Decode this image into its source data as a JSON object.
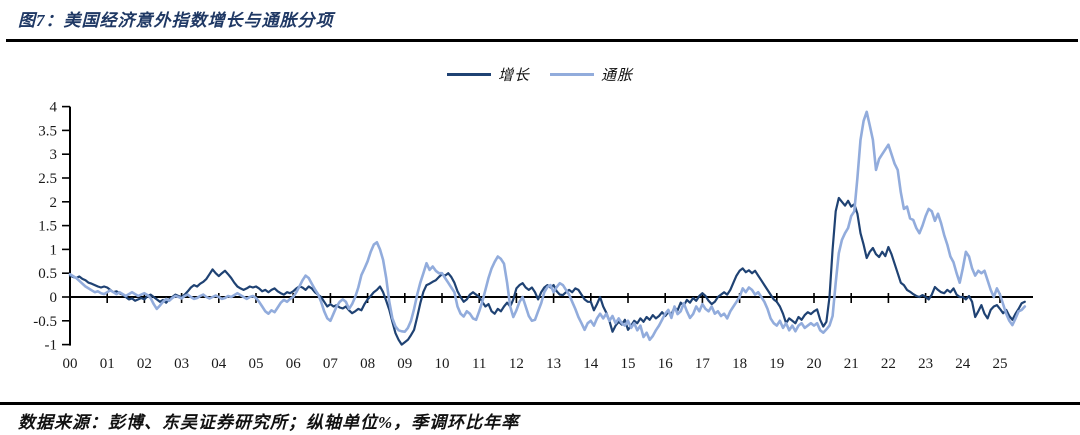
{
  "title": "图7：美国经济意外指数增长与通胀分项",
  "footer": {
    "source": "数据来源：彭博、东吴证券研究所；纵轴单位%，季调环比年率"
  },
  "colors": {
    "title": "#1F3864",
    "axis": "#000000",
    "growth": "#1F4273",
    "inflation": "#92ACDC"
  },
  "chart_data": {
    "type": "line",
    "title": "图7：美国经济意外指数增长与通胀分项",
    "ylabel": "",
    "xlabel": "",
    "y_unit": "%",
    "note": "季调环比年率",
    "ylim": [
      -1,
      4
    ],
    "y_ticks": [
      4,
      3.5,
      3,
      2.5,
      2,
      1.5,
      1,
      0.5,
      0,
      -0.5,
      -1
    ],
    "y_tick_labels": [
      "4",
      "3.5",
      "3",
      "2.5",
      "2",
      "1.5",
      "1",
      "0.5",
      "0",
      "-0.5",
      "-1"
    ],
    "x_tick_labels": [
      "00",
      "01",
      "02",
      "03",
      "04",
      "05",
      "06",
      "07",
      "08",
      "09",
      "10",
      "11",
      "12",
      "13",
      "14",
      "15",
      "16",
      "17",
      "18",
      "19",
      "20",
      "21",
      "22",
      "23",
      "24",
      "25"
    ],
    "x_start_year": 2000,
    "frequency": "monthly",
    "grid": false,
    "legend_position": "top",
    "series": [
      {
        "name": "增长",
        "color": "#1F4273",
        "values": [
          0.45,
          0.42,
          0.4,
          0.43,
          0.38,
          0.35,
          0.3,
          0.28,
          0.25,
          0.22,
          0.2,
          0.22,
          0.2,
          0.15,
          0.1,
          0.12,
          0.08,
          0.05,
          0.0,
          -0.05,
          -0.03,
          -0.08,
          -0.05,
          -0.02,
          -0.05,
          0.02,
          0.05,
          0.0,
          -0.05,
          -0.1,
          -0.06,
          -0.12,
          -0.05,
          0.0,
          0.05,
          0.02,
          0.0,
          0.05,
          0.12,
          0.2,
          0.25,
          0.22,
          0.28,
          0.32,
          0.38,
          0.48,
          0.58,
          0.5,
          0.44,
          0.5,
          0.55,
          0.48,
          0.4,
          0.3,
          0.22,
          0.18,
          0.15,
          0.18,
          0.22,
          0.2,
          0.22,
          0.18,
          0.12,
          0.15,
          0.1,
          0.15,
          0.18,
          0.12,
          0.08,
          0.05,
          0.1,
          0.08,
          0.12,
          0.18,
          0.22,
          0.2,
          0.15,
          0.22,
          0.18,
          0.1,
          0.05,
          0.0,
          -0.1,
          -0.2,
          -0.15,
          -0.2,
          -0.17,
          -0.22,
          -0.24,
          -0.2,
          -0.28,
          -0.34,
          -0.3,
          -0.25,
          -0.28,
          -0.15,
          -0.05,
          0.02,
          0.1,
          0.15,
          0.22,
          0.1,
          -0.08,
          -0.27,
          -0.52,
          -0.76,
          -0.9,
          -1.0,
          -0.95,
          -0.9,
          -0.8,
          -0.69,
          -0.42,
          -0.13,
          0.11,
          0.25,
          0.28,
          0.32,
          0.35,
          0.42,
          0.48,
          0.45,
          0.5,
          0.42,
          0.3,
          0.12,
          0.0,
          -0.1,
          -0.05,
          0.05,
          0.1,
          0.05,
          0.0,
          -0.1,
          -0.2,
          -0.15,
          -0.3,
          -0.35,
          -0.25,
          -0.3,
          -0.2,
          -0.12,
          -0.2,
          -0.05,
          0.18,
          0.25,
          0.29,
          0.2,
          0.15,
          0.2,
          0.1,
          -0.05,
          0.1,
          0.2,
          0.25,
          0.2,
          0.25,
          0.12,
          0.05,
          0.04,
          0.1,
          0.15,
          0.1,
          0.18,
          0.15,
          0.05,
          -0.05,
          -0.1,
          -0.1,
          -0.28,
          -0.15,
          0.0,
          -0.2,
          -0.33,
          -0.5,
          -0.73,
          -0.6,
          -0.52,
          -0.58,
          -0.48,
          -0.69,
          -0.6,
          -0.5,
          -0.55,
          -0.45,
          -0.52,
          -0.42,
          -0.48,
          -0.38,
          -0.45,
          -0.4,
          -0.32,
          -0.4,
          -0.32,
          -0.36,
          -0.22,
          -0.28,
          -0.12,
          -0.18,
          -0.06,
          -0.12,
          -0.02,
          -0.08,
          0.02,
          0.08,
          0.02,
          -0.08,
          -0.15,
          -0.1,
          0.0,
          0.05,
          0.1,
          0.05,
          0.15,
          0.3,
          0.45,
          0.55,
          0.6,
          0.52,
          0.56,
          0.5,
          0.55,
          0.45,
          0.35,
          0.25,
          0.15,
          0.05,
          -0.05,
          -0.1,
          -0.2,
          -0.35,
          -0.55,
          -0.45,
          -0.5,
          -0.55,
          -0.42,
          -0.48,
          -0.38,
          -0.32,
          -0.36,
          -0.3,
          -0.26,
          -0.48,
          -0.62,
          -0.52,
          0.0,
          1.0,
          1.8,
          2.08,
          2.0,
          1.92,
          2.02,
          1.9,
          1.95,
          1.75,
          1.34,
          1.1,
          0.82,
          0.95,
          1.03,
          0.9,
          0.84,
          0.95,
          0.86,
          1.05,
          0.9,
          0.7,
          0.5,
          0.3,
          0.25,
          0.15,
          0.11,
          0.06,
          0.02,
          0.0,
          0.04,
          0.0,
          -0.05,
          0.05,
          0.21,
          0.15,
          0.1,
          0.08,
          0.15,
          0.1,
          0.18,
          0.05,
          0.0,
          0.0,
          -0.05,
          0.02,
          -0.1,
          -0.42,
          -0.3,
          -0.17,
          -0.35,
          -0.45,
          -0.27,
          -0.2,
          -0.17,
          -0.25,
          -0.34,
          -0.27,
          -0.4,
          -0.48,
          -0.35,
          -0.25,
          -0.13,
          -0.1
        ]
      },
      {
        "name": "通胀",
        "color": "#92ACDC",
        "values": [
          0.48,
          0.44,
          0.4,
          0.34,
          0.28,
          0.22,
          0.18,
          0.14,
          0.1,
          0.12,
          0.08,
          0.06,
          0.1,
          0.14,
          0.1,
          0.06,
          0.1,
          0.06,
          0.02,
          0.06,
          0.1,
          0.06,
          0.02,
          0.05,
          0.08,
          0.04,
          -0.02,
          -0.15,
          -0.25,
          -0.18,
          -0.1,
          -0.04,
          -0.08,
          -0.02,
          0.02,
          0.0,
          -0.03,
          0.02,
          0.05,
          0.0,
          -0.04,
          -0.02,
          0.02,
          0.05,
          0.0,
          -0.03,
          0.0,
          0.03,
          0.0,
          -0.04,
          -0.02,
          0.02,
          0.0,
          0.04,
          0.08,
          0.04,
          0.0,
          -0.04,
          0.0,
          0.02,
          -0.02,
          -0.1,
          -0.2,
          -0.3,
          -0.35,
          -0.28,
          -0.32,
          -0.22,
          -0.12,
          -0.06,
          -0.1,
          -0.04,
          0.0,
          0.1,
          0.22,
          0.35,
          0.45,
          0.4,
          0.28,
          0.16,
          0.06,
          -0.1,
          -0.3,
          -0.45,
          -0.5,
          -0.35,
          -0.2,
          -0.1,
          -0.05,
          -0.1,
          -0.25,
          -0.15,
          0.0,
          0.2,
          0.46,
          0.6,
          0.75,
          0.95,
          1.1,
          1.15,
          1.0,
          0.78,
          0.4,
          -0.1,
          -0.45,
          -0.62,
          -0.7,
          -0.72,
          -0.73,
          -0.65,
          -0.5,
          -0.25,
          0.05,
          0.3,
          0.5,
          0.71,
          0.57,
          0.64,
          0.55,
          0.5,
          0.5,
          0.4,
          0.3,
          0.2,
          0.1,
          -0.2,
          -0.35,
          -0.41,
          -0.3,
          -0.35,
          -0.45,
          -0.48,
          -0.3,
          -0.1,
          0.15,
          0.4,
          0.6,
          0.74,
          0.85,
          0.8,
          0.7,
          0.3,
          -0.2,
          -0.42,
          -0.28,
          -0.1,
          0.0,
          -0.2,
          -0.4,
          -0.5,
          -0.48,
          -0.3,
          -0.13,
          0.1,
          0.21,
          0.25,
          0.1,
          0.21,
          0.29,
          0.25,
          0.15,
          0.05,
          -0.1,
          -0.25,
          -0.42,
          -0.55,
          -0.69,
          -0.55,
          -0.5,
          -0.6,
          -0.45,
          -0.35,
          -0.45,
          -0.35,
          -0.5,
          -0.4,
          -0.55,
          -0.45,
          -0.55,
          -0.6,
          -0.5,
          -0.65,
          -0.55,
          -0.7,
          -0.6,
          -0.84,
          -0.75,
          -0.9,
          -0.82,
          -0.7,
          -0.6,
          -0.48,
          -0.35,
          -0.27,
          -0.44,
          -0.2,
          -0.36,
          -0.3,
          -0.13,
          -0.3,
          -0.44,
          -0.36,
          -0.2,
          -0.3,
          -0.15,
          -0.25,
          -0.3,
          -0.2,
          -0.35,
          -0.3,
          -0.4,
          -0.35,
          -0.45,
          -0.3,
          -0.2,
          -0.1,
          0.0,
          0.18,
          0.1,
          0.2,
          0.15,
          0.05,
          0.1,
          0.0,
          -0.1,
          -0.25,
          -0.45,
          -0.55,
          -0.6,
          -0.5,
          -0.65,
          -0.55,
          -0.7,
          -0.6,
          -0.72,
          -0.6,
          -0.55,
          -0.65,
          -0.6,
          -0.55,
          -0.6,
          -0.55,
          -0.7,
          -0.75,
          -0.68,
          -0.6,
          -0.4,
          0.3,
          0.92,
          1.2,
          1.34,
          1.45,
          1.7,
          1.8,
          2.5,
          3.3,
          3.7,
          3.89,
          3.6,
          3.3,
          2.67,
          2.9,
          3.0,
          3.1,
          3.2,
          3.0,
          2.8,
          2.67,
          2.2,
          1.85,
          1.9,
          1.65,
          1.62,
          1.45,
          1.34,
          1.5,
          1.7,
          1.85,
          1.8,
          1.6,
          1.75,
          1.55,
          1.3,
          1.1,
          0.85,
          0.73,
          0.5,
          0.3,
          0.6,
          0.95,
          0.85,
          0.6,
          0.45,
          0.55,
          0.5,
          0.55,
          0.35,
          0.15,
          0.0,
          0.18,
          0.05,
          -0.15,
          -0.35,
          -0.5,
          -0.59,
          -0.45,
          -0.3,
          -0.27,
          -0.2
        ]
      }
    ]
  }
}
